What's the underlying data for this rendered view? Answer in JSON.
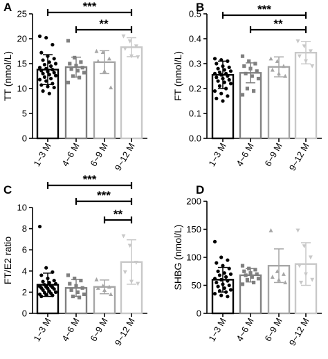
{
  "chart_data": [
    {
      "panel": "A",
      "type": "bar",
      "ylabel": "TT (nmol/L)",
      "ylim": [
        0,
        25
      ],
      "yticks": [
        "0",
        "5",
        "10",
        "15",
        "20",
        "25"
      ],
      "categories": [
        "1~3 M",
        "4~6 M",
        "6~9 M",
        "9~12 M"
      ],
      "values": [
        13.8,
        14.3,
        15.3,
        18.3
      ],
      "sd": [
        3.0,
        2.0,
        2.3,
        1.9
      ],
      "points": [
        [
          20.5,
          20.2,
          18.8,
          17.2,
          16.5,
          16.0,
          15.7,
          15.3,
          15.0,
          14.8,
          14.5,
          14.2,
          14.0,
          13.8,
          13.6,
          13.4,
          13.2,
          13.0,
          12.8,
          12.6,
          12.3,
          12.0,
          11.8,
          11.5,
          11.0,
          10.7,
          10.4,
          10.2,
          9.5,
          9.0
        ],
        [
          19.6,
          16.2,
          15.3,
          15.0,
          14.6,
          14.2,
          13.9,
          13.6,
          13.2,
          12.5,
          12.2,
          11.2
        ],
        [
          17.5,
          17.3,
          16.0,
          15.5,
          13.5,
          10.2
        ],
        [
          20.5,
          19.5,
          18.5,
          18.0,
          16.5,
          16.3
        ]
      ],
      "markers": [
        "circle",
        "square",
        "triangle",
        "triangle-down"
      ],
      "colors": [
        "#000000",
        "#808080",
        "#a6a6a6",
        "#c8c8c8"
      ],
      "significance": [
        {
          "from": 0,
          "to": 3,
          "label": "***"
        },
        {
          "from": 1,
          "to": 3,
          "label": "**"
        }
      ]
    },
    {
      "panel": "B",
      "type": "bar",
      "ylabel": "FT (nmol/L)",
      "ylim": [
        0,
        0.5
      ],
      "yticks": [
        "0.0",
        "0.1",
        "0.2",
        "0.3",
        "0.4",
        "0.5"
      ],
      "categories": [
        "1~3 M",
        "4~6 M",
        "6~9 M",
        "9~12 M"
      ],
      "values": [
        0.255,
        0.263,
        0.287,
        0.344
      ],
      "sd": [
        0.055,
        0.04,
        0.04,
        0.045
      ],
      "points": [
        [
          0.32,
          0.315,
          0.31,
          0.3,
          0.29,
          0.285,
          0.28,
          0.275,
          0.27,
          0.265,
          0.26,
          0.26,
          0.255,
          0.25,
          0.245,
          0.24,
          0.235,
          0.23,
          0.225,
          0.22,
          0.21,
          0.2,
          0.19,
          0.18,
          0.17,
          0.16,
          0.15
        ],
        [
          0.33,
          0.31,
          0.3,
          0.29,
          0.28,
          0.27,
          0.26,
          0.25,
          0.24,
          0.2,
          0.19,
          0.175
        ],
        [
          0.32,
          0.31,
          0.29,
          0.275,
          0.26,
          0.25
        ],
        [
          0.39,
          0.37,
          0.35,
          0.33,
          0.31,
          0.29
        ]
      ],
      "markers": [
        "circle",
        "square",
        "triangle",
        "triangle-down"
      ],
      "colors": [
        "#000000",
        "#808080",
        "#a6a6a6",
        "#c8c8c8"
      ],
      "significance": [
        {
          "from": 0,
          "to": 3,
          "label": "***"
        },
        {
          "from": 1,
          "to": 3,
          "label": "**"
        }
      ]
    },
    {
      "panel": "C",
      "type": "bar",
      "ylabel": "FT/E2 ratio",
      "ylim": [
        0,
        10
      ],
      "yticks": [
        "0",
        "2",
        "4",
        "6",
        "8",
        "10"
      ],
      "categories": [
        "1~3 M",
        "4~6 M",
        "6~9 M",
        "9~12 M"
      ],
      "values": [
        2.7,
        2.4,
        2.5,
        4.85
      ],
      "sd": [
        1.1,
        0.8,
        0.65,
        2.1
      ],
      "points": [
        [
          8.2,
          4.3,
          3.9,
          3.6,
          3.3,
          3.1,
          3.0,
          2.9,
          2.8,
          2.7,
          2.6,
          2.55,
          2.5,
          2.45,
          2.4,
          2.35,
          2.3,
          2.2,
          2.1,
          2.0,
          1.95,
          1.9,
          1.8,
          1.75,
          1.7,
          1.6
        ],
        [
          3.6,
          3.3,
          3.1,
          2.8,
          2.6,
          2.4,
          2.2,
          2.0,
          1.8,
          1.6,
          1.5
        ],
        [
          3.2,
          2.6,
          2.5,
          2.4,
          2.2,
          1.8
        ],
        [
          7.3,
          6.4,
          4.8,
          3.9,
          3.0,
          2.8
        ]
      ],
      "markers": [
        "circle",
        "square",
        "triangle",
        "triangle-down"
      ],
      "colors": [
        "#000000",
        "#808080",
        "#a6a6a6",
        "#c8c8c8"
      ],
      "significance": [
        {
          "from": 0,
          "to": 3,
          "label": "***"
        },
        {
          "from": 1,
          "to": 3,
          "label": "***"
        },
        {
          "from": 2,
          "to": 3,
          "label": "**"
        }
      ]
    },
    {
      "panel": "D",
      "type": "bar",
      "ylabel": "SHBG (nmol/L)",
      "ylim": [
        0,
        200
      ],
      "yticks": [
        "0",
        "50",
        "100",
        "150",
        "200"
      ],
      "categories": [
        "1~3 M",
        "4~6 M",
        "6~9 M",
        "9~12 M"
      ],
      "values": [
        60,
        68,
        85,
        88
      ],
      "sd": [
        22,
        12,
        30,
        38
      ],
      "points": [
        [
          128,
          100,
          95,
          90,
          85,
          80,
          75,
          72,
          70,
          68,
          65,
          62,
          60,
          58,
          55,
          52,
          50,
          48,
          45,
          42,
          40,
          38,
          35,
          32,
          30
        ],
        [
          85,
          80,
          78,
          75,
          72,
          70,
          68,
          65,
          62,
          60,
          55,
          52
        ],
        [
          148,
          75,
          70,
          65,
          60,
          55
        ],
        [
          148,
          120,
          100,
          85,
          70,
          60,
          55
        ]
      ],
      "markers": [
        "circle",
        "square",
        "triangle",
        "triangle-down"
      ],
      "colors": [
        "#000000",
        "#808080",
        "#a6a6a6",
        "#c8c8c8"
      ],
      "significance": []
    }
  ]
}
